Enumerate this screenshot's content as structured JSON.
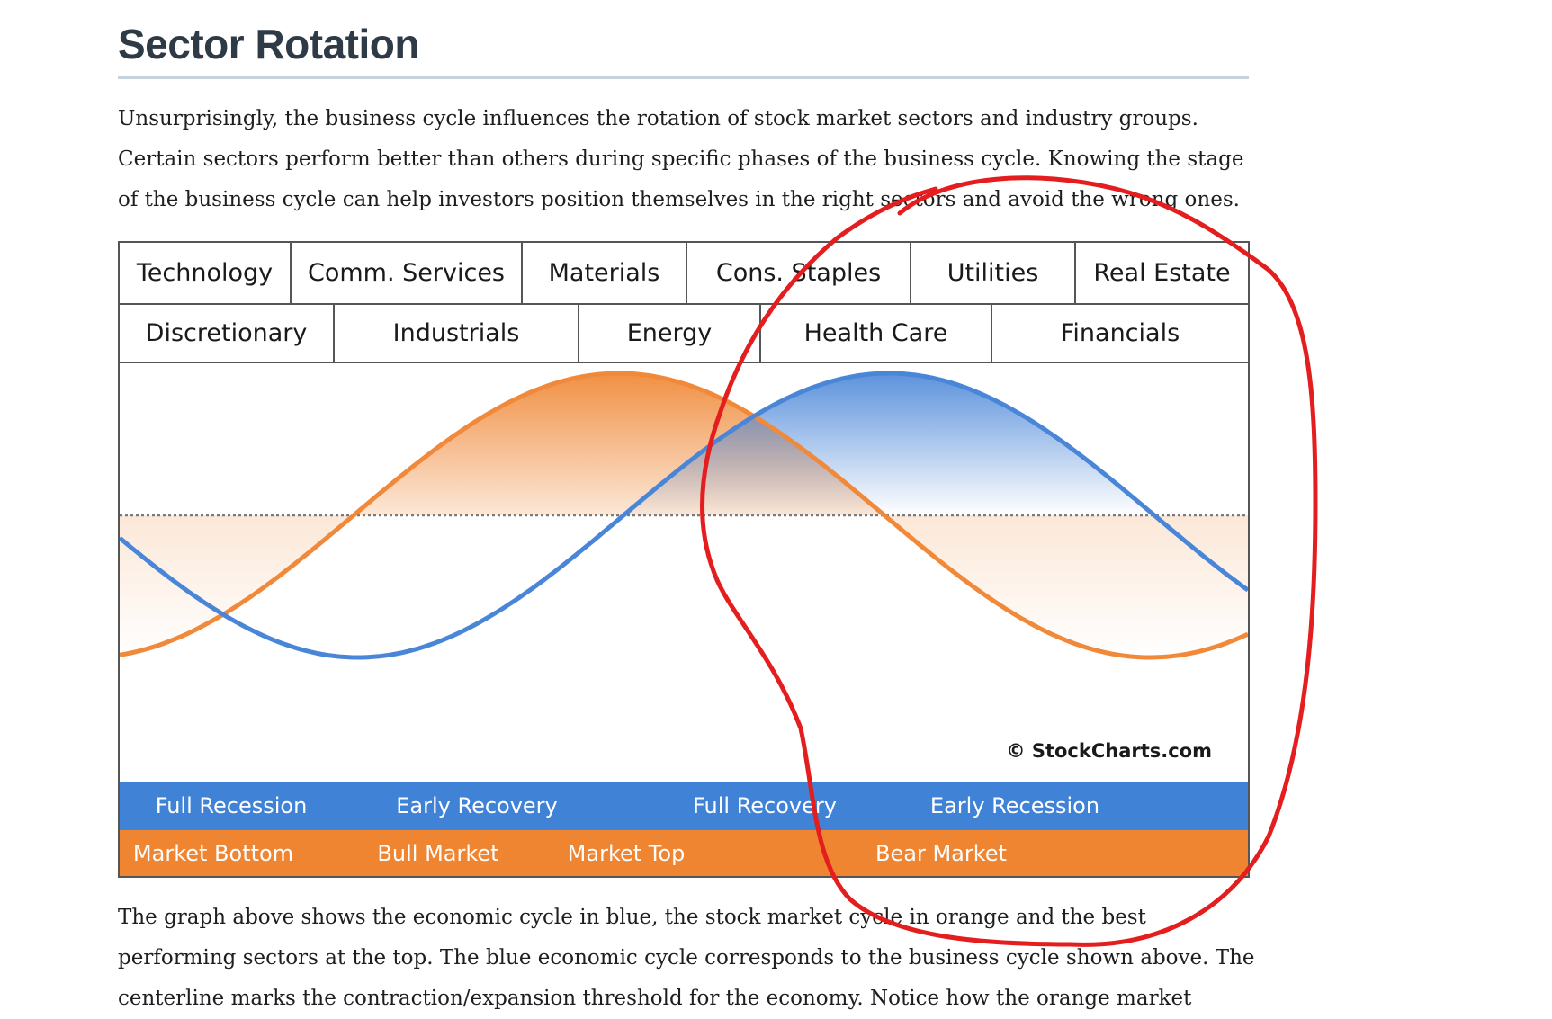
{
  "page": {
    "title": "Sector Rotation",
    "intro_lines": [
      "Unsurprisingly, the business cycle influences the rotation of stock market sectors and industry groups.",
      "Certain sectors perform better than others during specific phases of the business cycle. Knowing the stage",
      "of the business cycle can help investors position themselves in the right sectors and avoid the wrong ones."
    ],
    "after_lines": [
      "The graph above shows the economic cycle in blue, the stock market cycle in orange and the best",
      "performing sectors at the top. The blue economic cycle corresponds to the business cycle shown above. The",
      "centerline marks the contraction/expansion threshold for the economy. Notice how the orange market"
    ]
  },
  "diagram": {
    "sectors_row1": [
      "Technology",
      "Comm. Services",
      "Materials",
      "Cons. Staples",
      "Utilities",
      "Real Estate"
    ],
    "sectors_row2": [
      "Discretionary",
      "Industrials",
      "Energy",
      "Health Care",
      "Financials"
    ],
    "copyright": "© StockCharts.com",
    "economic_phases": [
      "Full Recession",
      "Early Recovery",
      "Full Recovery",
      "Early Recession"
    ],
    "market_phases": [
      "Market Bottom",
      "Bull Market",
      "Market Top",
      "Bear Market"
    ],
    "colors": {
      "economic_cycle": "#4a86d8",
      "market_cycle": "#f08a3a",
      "economic_band": "#3f82d6",
      "market_band": "#f08531",
      "annotation": "#e41e1e"
    }
  },
  "annotation": {
    "shape": "freehand-circle",
    "color": "#e41e1e"
  }
}
